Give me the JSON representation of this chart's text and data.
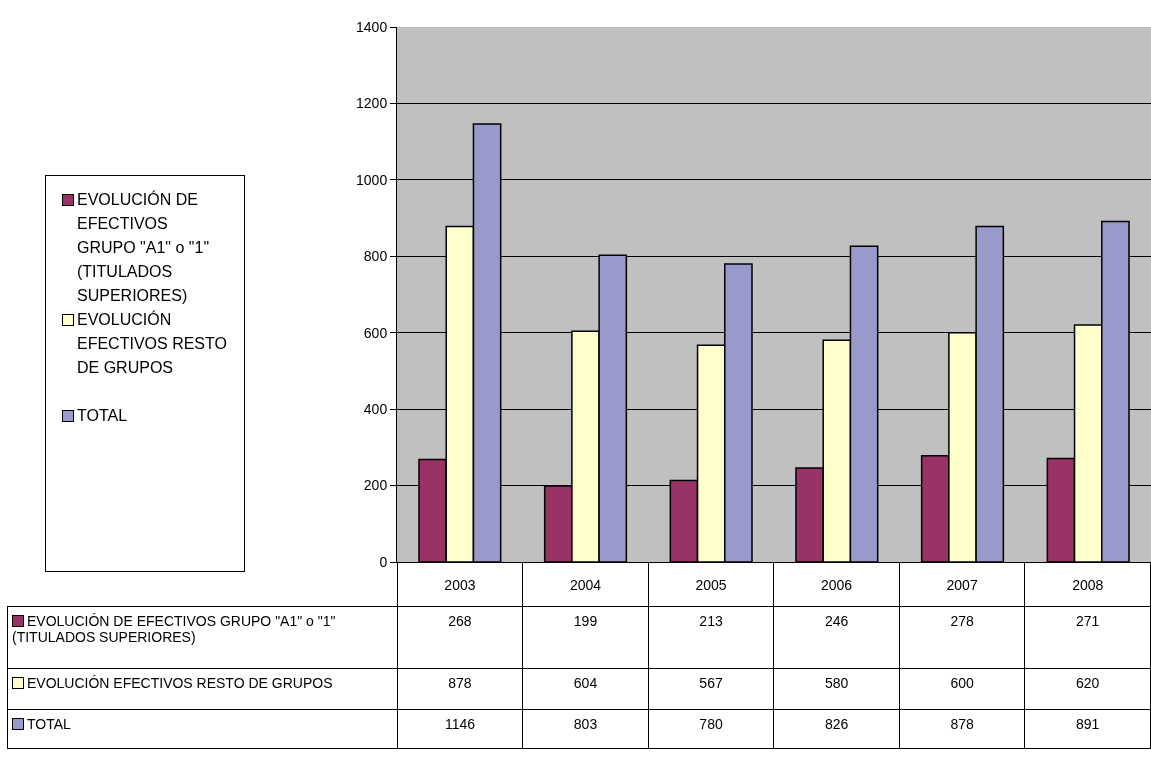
{
  "chart_data": {
    "type": "bar",
    "categories": [
      "2003",
      "2004",
      "2005",
      "2006",
      "2007",
      "2008"
    ],
    "series": [
      {
        "name": "EVOLUCIÓN DE  EFECTIVOS GRUPO \"A1\" o \"1\" (TITULADOS SUPERIORES)",
        "color": "#993366",
        "values": [
          268,
          199,
          213,
          246,
          278,
          271
        ]
      },
      {
        "name": "EVOLUCIÓN EFECTIVOS RESTO DE GRUPOS",
        "color": "#ffffcc",
        "values": [
          878,
          604,
          567,
          580,
          600,
          620
        ]
      },
      {
        "name": "TOTAL",
        "color": "#9999cc",
        "values": [
          1146,
          803,
          780,
          826,
          878,
          891
        ]
      }
    ],
    "ylim": [
      0,
      1400
    ],
    "yticks": [
      0,
      200,
      400,
      600,
      800,
      1000,
      1200,
      1400
    ],
    "grid": "y",
    "legend": "left",
    "data_labels": true
  }
}
